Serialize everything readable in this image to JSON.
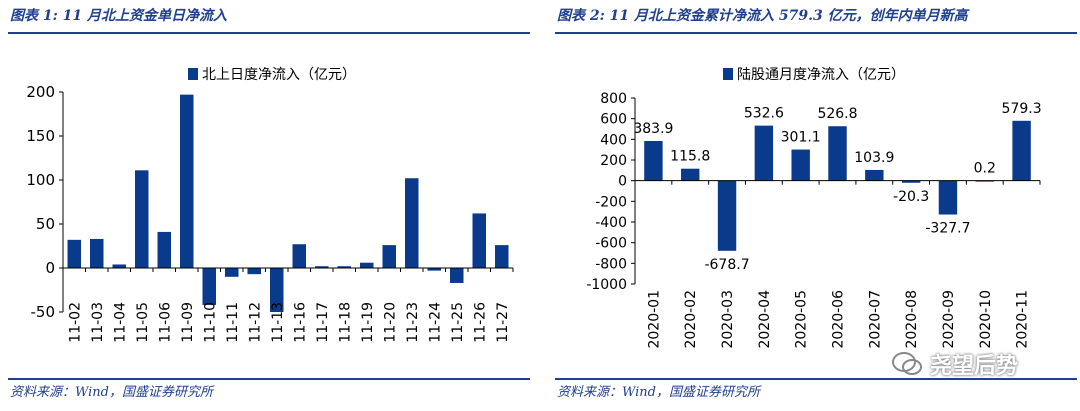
{
  "left": {
    "title": "图表 1:  11 月北上资金单日净流入",
    "source": "资料来源：Wind，国盛证券研究所"
  },
  "right": {
    "title": "图表 2:  11 月北上资金累计净流入 579.3 亿元，创年内单月新高",
    "source": "资料来源：Wind，国盛证券研究所"
  },
  "watermark": {
    "text": "尧望后势"
  },
  "colors": {
    "bar": "#0a3a8c",
    "brand": "#1f3f8f",
    "axis": "#000000"
  },
  "chart_data": [
    {
      "type": "bar",
      "legend": "北上日度净流入（亿元）",
      "legend_position": "top",
      "categories": [
        "11-02",
        "11-03",
        "11-04",
        "11-05",
        "11-06",
        "11-09",
        "11-10",
        "11-11",
        "11-12",
        "11-13",
        "11-16",
        "11-17",
        "11-18",
        "11-19",
        "11-20",
        "11-23",
        "11-24",
        "11-25",
        "11-26",
        "11-27"
      ],
      "values": [
        32,
        33,
        4,
        111,
        41,
        197,
        -42,
        -10,
        -7,
        -50,
        27,
        2,
        2,
        6,
        26,
        102,
        -3,
        -17,
        62,
        26
      ],
      "ylim": [
        -50,
        200
      ],
      "yticks": [
        -50,
        0,
        50,
        100,
        150,
        200
      ],
      "grid": false
    },
    {
      "type": "bar",
      "legend": "陆股通月度净流入（亿元）",
      "legend_position": "top",
      "categories": [
        "2020-01",
        "2020-02",
        "2020-03",
        "2020-04",
        "2020-05",
        "2020-06",
        "2020-07",
        "2020-08",
        "2020-09",
        "2020-10",
        "2020-11"
      ],
      "values": [
        383.9,
        115.8,
        -678.7,
        532.6,
        301.1,
        526.8,
        103.9,
        -20.3,
        -327.7,
        0.2,
        579.3
      ],
      "labels": [
        "383.9",
        "115.8",
        "-678.7",
        "532.6",
        "301.1",
        "526.8",
        "103.9",
        "-20.3",
        "-327.7",
        "0.2",
        "579.3"
      ],
      "ylim": [
        -1000,
        800
      ],
      "yticks": [
        -1000,
        -800,
        -600,
        -400,
        -200,
        0,
        200,
        400,
        600,
        800
      ],
      "grid": false
    }
  ]
}
